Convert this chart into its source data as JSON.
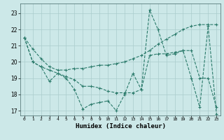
{
  "xlabel": "Humidex (Indice chaleur)",
  "background_color": "#cce8e8",
  "grid_color": "#aacccc",
  "line_color": "#2a7a6a",
  "x": [
    0,
    1,
    2,
    3,
    4,
    5,
    6,
    7,
    8,
    9,
    10,
    11,
    12,
    13,
    14,
    15,
    16,
    17,
    18,
    19,
    20,
    21,
    22,
    23
  ],
  "line1": [
    21.5,
    20.0,
    19.7,
    18.8,
    19.3,
    19.0,
    18.3,
    17.1,
    17.4,
    17.5,
    17.6,
    17.0,
    18.0,
    19.3,
    18.3,
    23.2,
    22.0,
    20.4,
    20.5,
    20.7,
    19.0,
    17.2,
    22.2,
    16.8
  ],
  "line2": [
    21.5,
    20.0,
    19.7,
    19.5,
    19.3,
    19.1,
    18.9,
    18.5,
    18.5,
    18.4,
    18.2,
    18.1,
    18.1,
    18.1,
    18.3,
    20.4,
    20.5,
    20.5,
    20.6,
    20.7,
    20.7,
    19.0,
    19.0,
    17.2
  ],
  "line3": [
    21.5,
    20.8,
    20.2,
    19.7,
    19.5,
    19.5,
    19.6,
    19.6,
    19.7,
    19.8,
    19.8,
    19.9,
    20.0,
    20.2,
    20.4,
    20.7,
    21.1,
    21.4,
    21.7,
    22.0,
    22.2,
    22.3,
    22.3,
    22.3
  ],
  "ylim": [
    16.7,
    23.6
  ],
  "yticks": [
    17,
    18,
    19,
    20,
    21,
    22,
    23
  ],
  "xlim": [
    -0.5,
    23.5
  ]
}
